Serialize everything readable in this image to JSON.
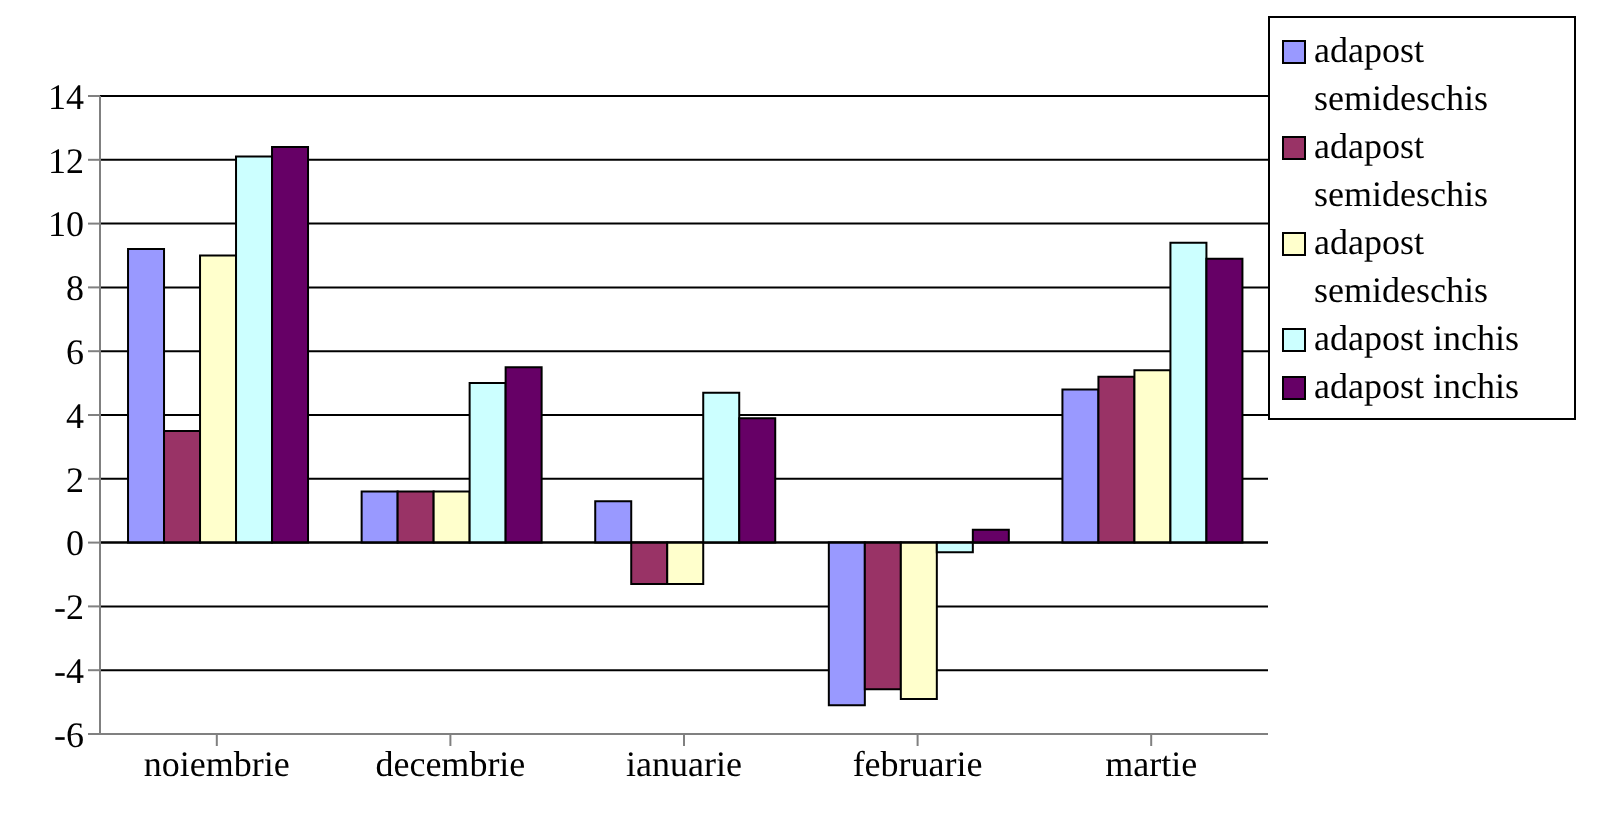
{
  "chart_data": {
    "type": "bar",
    "categories": [
      "noiembrie",
      "decembrie",
      "ianuarie",
      "februarie",
      "martie"
    ],
    "series": [
      {
        "name": "adapost semideschis",
        "color": "#9999ff",
        "values": [
          9.2,
          1.6,
          1.3,
          -5.1,
          4.8
        ]
      },
      {
        "name": "adapost semideschis",
        "color": "#993366",
        "values": [
          3.5,
          1.6,
          -1.3,
          -4.6,
          5.2
        ]
      },
      {
        "name": "adapost semideschis",
        "color": "#ffffcc",
        "values": [
          9.0,
          1.6,
          -1.3,
          -4.9,
          5.4
        ]
      },
      {
        "name": "adapost inchis",
        "color": "#ccffff",
        "values": [
          12.1,
          5.0,
          4.7,
          -0.3,
          9.4
        ]
      },
      {
        "name": "adapost inchis",
        "color": "#660066",
        "values": [
          12.4,
          5.5,
          3.9,
          0.4,
          8.9
        ]
      }
    ],
    "ylim": [
      -6,
      14
    ],
    "yticks": [
      -6,
      -4,
      -2,
      0,
      2,
      4,
      6,
      8,
      10,
      12,
      14
    ],
    "grid": "y",
    "legend": "right"
  }
}
